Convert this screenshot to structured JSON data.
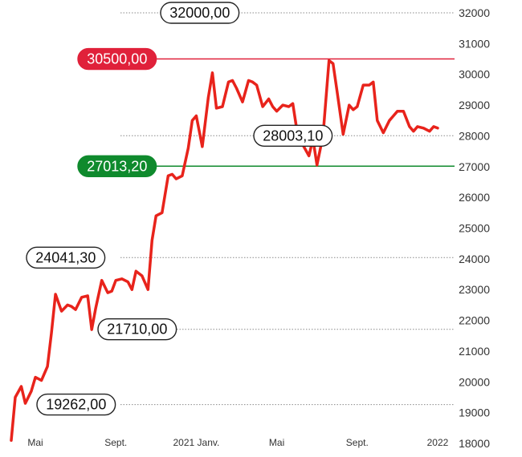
{
  "chart_data": {
    "type": "line",
    "title": "",
    "xlabel": "",
    "ylabel": "",
    "ylim": [
      18000,
      32000
    ],
    "y_ticks": [
      18000,
      19000,
      20000,
      21000,
      22000,
      23000,
      24000,
      25000,
      26000,
      27000,
      28000,
      29000,
      30000,
      31000,
      32000
    ],
    "y_tick_labels": [
      "18000",
      "19000",
      "20000",
      "21000",
      "22000",
      "23000",
      "24000",
      "25000",
      "26000",
      "27000",
      "28000",
      "29000",
      "30000",
      "31000",
      "32000"
    ],
    "x_tick_labels": [
      "Mai",
      "Sept.",
      "2021 Janv.",
      "Mai",
      "Sept.",
      "2022"
    ],
    "x_tick_positions": [
      3.5,
      7.5,
      11.5,
      15.5,
      19.5,
      23.5
    ],
    "xlim": [
      2.3,
      24.3
    ],
    "line_color": "#e8231b",
    "series": [
      {
        "x": [
          2.3,
          2.5,
          2.8,
          3.0,
          3.3,
          3.5,
          3.8,
          4.1,
          4.3,
          4.5,
          4.8,
          5.1,
          5.3,
          5.5,
          5.8,
          6.1,
          6.3,
          6.5,
          6.8,
          7.1,
          7.3,
          7.5,
          7.8,
          8.1,
          8.3,
          8.5,
          8.8,
          9.1,
          9.3,
          9.5,
          9.8,
          10.1,
          10.3,
          10.5,
          10.8,
          11.1,
          11.3,
          11.5,
          11.8,
          12.1,
          12.3,
          12.5,
          12.8,
          13.1,
          13.3,
          13.5,
          13.8,
          14.1,
          14.3,
          14.5,
          14.8,
          15.1,
          15.3,
          15.5,
          15.8,
          16.1,
          16.3,
          16.5,
          16.8,
          17.1,
          17.3,
          17.5,
          17.8,
          18.1,
          18.3,
          18.5,
          18.8,
          19.1,
          19.3,
          19.5,
          19.8,
          20.1,
          20.3,
          20.5,
          20.8,
          21.1,
          21.3,
          21.5,
          21.8,
          22.1,
          22.3,
          22.5,
          22.8,
          23.1,
          23.3,
          23.5
        ],
        "y": [
          18100,
          19500,
          19850,
          19300,
          19700,
          20150,
          20050,
          20500,
          21600,
          22850,
          22300,
          22500,
          22450,
          22350,
          22750,
          22800,
          21700,
          22400,
          23300,
          22900,
          22950,
          23300,
          23350,
          23250,
          23000,
          23600,
          23450,
          23000,
          24600,
          25400,
          25500,
          26700,
          26750,
          26600,
          26700,
          27600,
          28500,
          28650,
          27650,
          29250,
          30050,
          28900,
          28950,
          29750,
          29800,
          29550,
          29100,
          29800,
          29750,
          29650,
          28950,
          29200,
          28950,
          28800,
          29000,
          28950,
          29050,
          28200,
          27700,
          27350,
          27900,
          27050,
          28000,
          30450,
          30350,
          29450,
          28050,
          29000,
          28850,
          28950,
          29650,
          29650,
          29750,
          28500,
          28100,
          28500,
          28650,
          28800,
          28800,
          28300,
          28150,
          28300,
          28250,
          28150,
          28300,
          28250
        ]
      }
    ],
    "levels": [
      {
        "label": "32000,00",
        "value": 32000,
        "style": "outline",
        "color": "#222222",
        "line": "dotted"
      },
      {
        "label": "30500,00",
        "value": 30500,
        "style": "filled",
        "color": "#e0213a",
        "line": "solid"
      },
      {
        "label": "28003,10",
        "value": 28003.1,
        "style": "outline",
        "color": "#222222",
        "line": "dotted"
      },
      {
        "label": "27013,20",
        "value": 27013.2,
        "style": "filled",
        "color": "#0f8a2d",
        "line": "solid"
      },
      {
        "label": "24041,30",
        "value": 24041.3,
        "style": "outline",
        "color": "#222222",
        "line": "dotted"
      },
      {
        "label": "21710,00",
        "value": 21710,
        "style": "outline",
        "color": "#222222",
        "line": "dotted"
      },
      {
        "label": "19262,00",
        "value": 19262,
        "style": "outline",
        "color": "#222222",
        "line": "dotted"
      }
    ]
  }
}
